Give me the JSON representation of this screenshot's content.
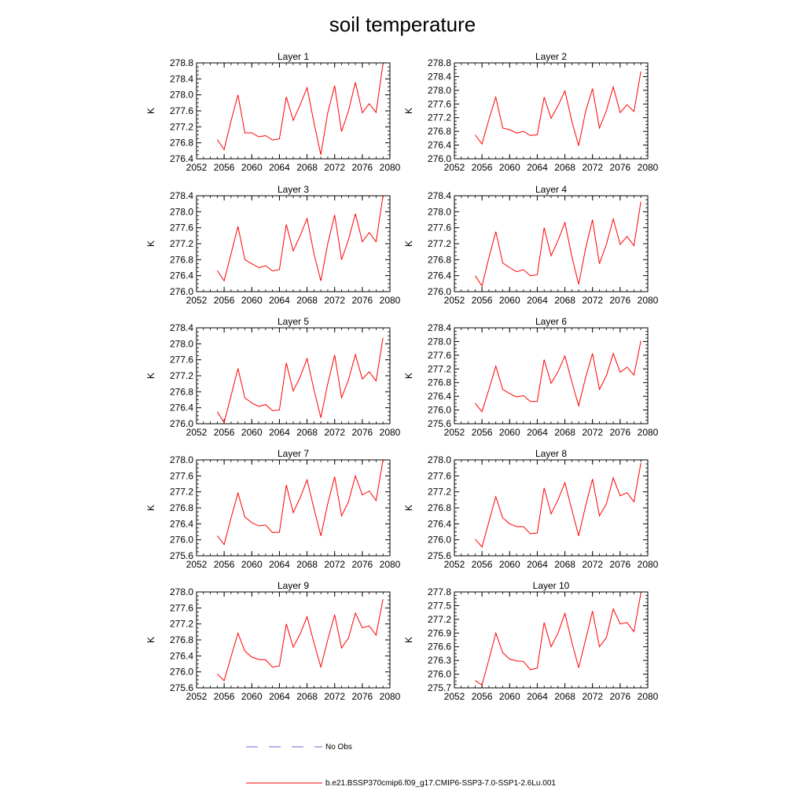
{
  "title": "soil temperature",
  "legend": [
    {
      "label": "No Obs",
      "color": "#6a6acd",
      "dash": "dashed"
    },
    {
      "label": "b.e21.BSSP370cmip6.f09_g17.CMIP6-SSP3-7.0-SSP1-2.6Lu.001",
      "color": "#ff0000",
      "dash": "solid"
    }
  ],
  "chart_data": [
    {
      "type": "line",
      "title": "Layer 1",
      "ylabel": "K",
      "xlim": [
        2052,
        2080
      ],
      "xticks": [
        2052,
        2056,
        2060,
        2064,
        2068,
        2072,
        2076,
        2080
      ],
      "ylim": [
        276.4,
        278.8
      ],
      "yticks": [
        "276.4",
        "276.8",
        "277.2",
        "277.6",
        "278.0",
        "278.4",
        "278.8"
      ],
      "x": [
        2055,
        2056,
        2057,
        2058,
        2059,
        2060,
        2061,
        2062,
        2063,
        2064,
        2065,
        2066,
        2067,
        2068,
        2069,
        2070,
        2071,
        2072,
        2073,
        2074,
        2075,
        2076,
        2077,
        2078,
        2079
      ],
      "series": [
        {
          "values": [
            276.88,
            276.63,
            277.35,
            278.0,
            277.05,
            277.05,
            276.95,
            276.98,
            276.87,
            276.9,
            277.95,
            277.36,
            277.75,
            278.18,
            277.3,
            276.5,
            277.55,
            278.23,
            277.08,
            277.6,
            278.31,
            277.55,
            277.78,
            277.56,
            278.78
          ]
        }
      ]
    },
    {
      "type": "line",
      "title": "Layer 2",
      "ylabel": "K",
      "xlim": [
        2052,
        2080
      ],
      "xticks": [
        2052,
        2056,
        2060,
        2064,
        2068,
        2072,
        2076,
        2080
      ],
      "ylim": [
        276.0,
        278.8
      ],
      "yticks": [
        "276.0",
        "276.4",
        "276.8",
        "277.2",
        "277.6",
        "278.0",
        "278.4",
        "278.8"
      ],
      "x": [
        2055,
        2056,
        2057,
        2058,
        2059,
        2060,
        2061,
        2062,
        2063,
        2064,
        2065,
        2066,
        2067,
        2068,
        2069,
        2070,
        2071,
        2072,
        2073,
        2074,
        2075,
        2076,
        2077,
        2078,
        2079
      ],
      "series": [
        {
          "values": [
            276.7,
            276.43,
            277.15,
            277.8,
            276.9,
            276.85,
            276.75,
            276.8,
            276.68,
            276.7,
            277.8,
            277.18,
            277.55,
            277.98,
            277.1,
            276.38,
            277.38,
            278.05,
            276.9,
            277.4,
            278.1,
            277.35,
            277.58,
            277.38,
            278.55
          ]
        }
      ]
    },
    {
      "type": "line",
      "title": "Layer 3",
      "ylabel": "K",
      "xlim": [
        2052,
        2080
      ],
      "xticks": [
        2052,
        2056,
        2060,
        2064,
        2068,
        2072,
        2076,
        2080
      ],
      "ylim": [
        276.0,
        278.4
      ],
      "yticks": [
        "276.0",
        "276.4",
        "276.8",
        "277.2",
        "277.6",
        "278.0",
        "278.4"
      ],
      "x": [
        2055,
        2056,
        2057,
        2058,
        2059,
        2060,
        2061,
        2062,
        2063,
        2064,
        2065,
        2066,
        2067,
        2068,
        2069,
        2070,
        2071,
        2072,
        2073,
        2074,
        2075,
        2076,
        2077,
        2078,
        2079
      ],
      "series": [
        {
          "values": [
            276.53,
            276.27,
            276.95,
            277.63,
            276.8,
            276.7,
            276.6,
            276.65,
            276.52,
            276.55,
            277.68,
            277.02,
            277.4,
            277.83,
            276.95,
            276.27,
            277.2,
            277.92,
            276.8,
            277.3,
            277.95,
            277.25,
            277.48,
            277.25,
            278.4
          ]
        }
      ]
    },
    {
      "type": "line",
      "title": "Layer 4",
      "ylabel": "K",
      "xlim": [
        2052,
        2080
      ],
      "xticks": [
        2052,
        2056,
        2060,
        2064,
        2068,
        2072,
        2076,
        2080
      ],
      "ylim": [
        276.0,
        278.4
      ],
      "yticks": [
        "276.0",
        "276.4",
        "276.8",
        "277.2",
        "277.6",
        "278.0",
        "278.4"
      ],
      "x": [
        2055,
        2056,
        2057,
        2058,
        2059,
        2060,
        2061,
        2062,
        2063,
        2064,
        2065,
        2066,
        2067,
        2068,
        2069,
        2070,
        2071,
        2072,
        2073,
        2074,
        2075,
        2076,
        2077,
        2078,
        2079
      ],
      "series": [
        {
          "values": [
            276.4,
            276.14,
            276.85,
            277.5,
            276.72,
            276.6,
            276.5,
            276.55,
            276.4,
            276.42,
            277.6,
            276.9,
            277.28,
            277.73,
            276.88,
            276.18,
            277.08,
            277.8,
            276.7,
            277.18,
            277.82,
            277.18,
            277.38,
            277.15,
            278.25
          ]
        }
      ]
    },
    {
      "type": "line",
      "title": "Layer 5",
      "ylabel": "K",
      "xlim": [
        2052,
        2080
      ],
      "xticks": [
        2052,
        2056,
        2060,
        2064,
        2068,
        2072,
        2076,
        2080
      ],
      "ylim": [
        276.0,
        278.4
      ],
      "yticks": [
        "276.0",
        "276.4",
        "276.8",
        "277.2",
        "277.6",
        "278.0",
        "278.4"
      ],
      "x": [
        2055,
        2056,
        2057,
        2058,
        2059,
        2060,
        2061,
        2062,
        2063,
        2064,
        2065,
        2066,
        2067,
        2068,
        2069,
        2070,
        2071,
        2072,
        2073,
        2074,
        2075,
        2076,
        2077,
        2078,
        2079
      ],
      "series": [
        {
          "values": [
            276.3,
            276.03,
            276.7,
            277.38,
            276.65,
            276.52,
            276.43,
            276.48,
            276.33,
            276.34,
            277.52,
            276.82,
            277.17,
            277.63,
            276.85,
            276.15,
            277.0,
            277.72,
            276.65,
            277.1,
            277.73,
            277.12,
            277.3,
            277.07,
            278.15
          ]
        }
      ]
    },
    {
      "type": "line",
      "title": "Layer 6",
      "ylabel": "K",
      "xlim": [
        2052,
        2080
      ],
      "xticks": [
        2052,
        2056,
        2060,
        2064,
        2068,
        2072,
        2076,
        2080
      ],
      "ylim": [
        275.6,
        278.4
      ],
      "yticks": [
        "275.6",
        "276.0",
        "276.4",
        "276.8",
        "277.2",
        "277.6",
        "278.0",
        "278.4"
      ],
      "x": [
        2055,
        2056,
        2057,
        2058,
        2059,
        2060,
        2061,
        2062,
        2063,
        2064,
        2065,
        2066,
        2067,
        2068,
        2069,
        2070,
        2071,
        2072,
        2073,
        2074,
        2075,
        2076,
        2077,
        2078,
        2079
      ],
      "series": [
        {
          "values": [
            276.2,
            275.95,
            276.6,
            277.28,
            276.6,
            276.48,
            276.38,
            276.42,
            276.25,
            276.25,
            277.47,
            276.78,
            277.12,
            277.58,
            276.82,
            276.12,
            276.95,
            277.65,
            276.6,
            277.0,
            277.65,
            277.1,
            277.25,
            277.02,
            278.02
          ]
        }
      ]
    },
    {
      "type": "line",
      "title": "Layer 7",
      "ylabel": "K",
      "xlim": [
        2052,
        2080
      ],
      "xticks": [
        2052,
        2056,
        2060,
        2064,
        2068,
        2072,
        2076,
        2080
      ],
      "ylim": [
        275.6,
        278.0
      ],
      "yticks": [
        "275.6",
        "276.0",
        "276.4",
        "276.8",
        "277.2",
        "277.6",
        "278.0"
      ],
      "x": [
        2055,
        2056,
        2057,
        2058,
        2059,
        2060,
        2061,
        2062,
        2063,
        2064,
        2065,
        2066,
        2067,
        2068,
        2069,
        2070,
        2071,
        2072,
        2073,
        2074,
        2075,
        2076,
        2077,
        2078,
        2079
      ],
      "series": [
        {
          "values": [
            276.1,
            275.88,
            276.55,
            277.17,
            276.57,
            276.43,
            276.35,
            276.37,
            276.18,
            276.19,
            277.37,
            276.68,
            277.05,
            277.5,
            276.78,
            276.1,
            276.9,
            277.58,
            276.6,
            276.95,
            277.6,
            277.12,
            277.22,
            276.98,
            278.0
          ]
        }
      ]
    },
    {
      "type": "line",
      "title": "Layer 8",
      "ylabel": "K",
      "xlim": [
        2052,
        2080
      ],
      "xticks": [
        2052,
        2056,
        2060,
        2064,
        2068,
        2072,
        2076,
        2080
      ],
      "ylim": [
        275.6,
        278.0
      ],
      "yticks": [
        "275.6",
        "276.0",
        "276.4",
        "276.8",
        "277.2",
        "277.6",
        "278.0"
      ],
      "x": [
        2055,
        2056,
        2057,
        2058,
        2059,
        2060,
        2061,
        2062,
        2063,
        2064,
        2065,
        2066,
        2067,
        2068,
        2069,
        2070,
        2071,
        2072,
        2073,
        2074,
        2075,
        2076,
        2077,
        2078,
        2079
      ],
      "series": [
        {
          "values": [
            276.02,
            275.82,
            276.45,
            277.08,
            276.55,
            276.4,
            276.33,
            276.33,
            276.15,
            276.17,
            277.3,
            276.65,
            277.0,
            277.43,
            276.75,
            276.1,
            276.85,
            277.52,
            276.6,
            276.9,
            277.55,
            277.1,
            277.18,
            276.95,
            277.92
          ]
        }
      ]
    },
    {
      "type": "line",
      "title": "Layer 9",
      "ylabel": "K",
      "xlim": [
        2052,
        2080
      ],
      "xticks": [
        2052,
        2056,
        2060,
        2064,
        2068,
        2072,
        2076,
        2080
      ],
      "ylim": [
        275.6,
        278.0
      ],
      "yticks": [
        "275.6",
        "276.0",
        "276.4",
        "276.8",
        "277.2",
        "277.6",
        "278.0"
      ],
      "x": [
        2055,
        2056,
        2057,
        2058,
        2059,
        2060,
        2061,
        2062,
        2063,
        2064,
        2065,
        2066,
        2067,
        2068,
        2069,
        2070,
        2071,
        2072,
        2073,
        2074,
        2075,
        2076,
        2077,
        2078,
        2079
      ],
      "series": [
        {
          "values": [
            275.95,
            275.78,
            276.38,
            276.97,
            276.52,
            276.37,
            276.31,
            276.3,
            276.12,
            276.15,
            277.2,
            276.62,
            276.95,
            277.38,
            276.73,
            276.12,
            276.8,
            277.43,
            276.6,
            276.85,
            277.47,
            277.1,
            277.15,
            276.92,
            277.82
          ]
        }
      ]
    },
    {
      "type": "line",
      "title": "Layer 10",
      "ylabel": "K",
      "xlim": [
        2052,
        2080
      ],
      "xticks": [
        2052,
        2056,
        2060,
        2064,
        2068,
        2072,
        2076,
        2080
      ],
      "ylim": [
        275.7,
        277.8
      ],
      "yticks": [
        "275.7",
        "276.0",
        "276.3",
        "276.6",
        "276.9",
        "277.2",
        "277.5",
        "277.8"
      ],
      "x": [
        2055,
        2056,
        2057,
        2058,
        2059,
        2060,
        2061,
        2062,
        2063,
        2064,
        2065,
        2066,
        2067,
        2068,
        2069,
        2070,
        2071,
        2072,
        2073,
        2074,
        2075,
        2076,
        2077,
        2078,
        2079
      ],
      "series": [
        {
          "values": [
            275.86,
            275.76,
            276.32,
            276.9,
            276.47,
            276.33,
            276.29,
            276.28,
            276.1,
            276.13,
            277.13,
            276.6,
            276.9,
            277.33,
            276.7,
            276.14,
            276.75,
            277.38,
            276.6,
            276.8,
            277.43,
            277.1,
            277.13,
            276.93,
            277.77
          ]
        }
      ]
    }
  ]
}
